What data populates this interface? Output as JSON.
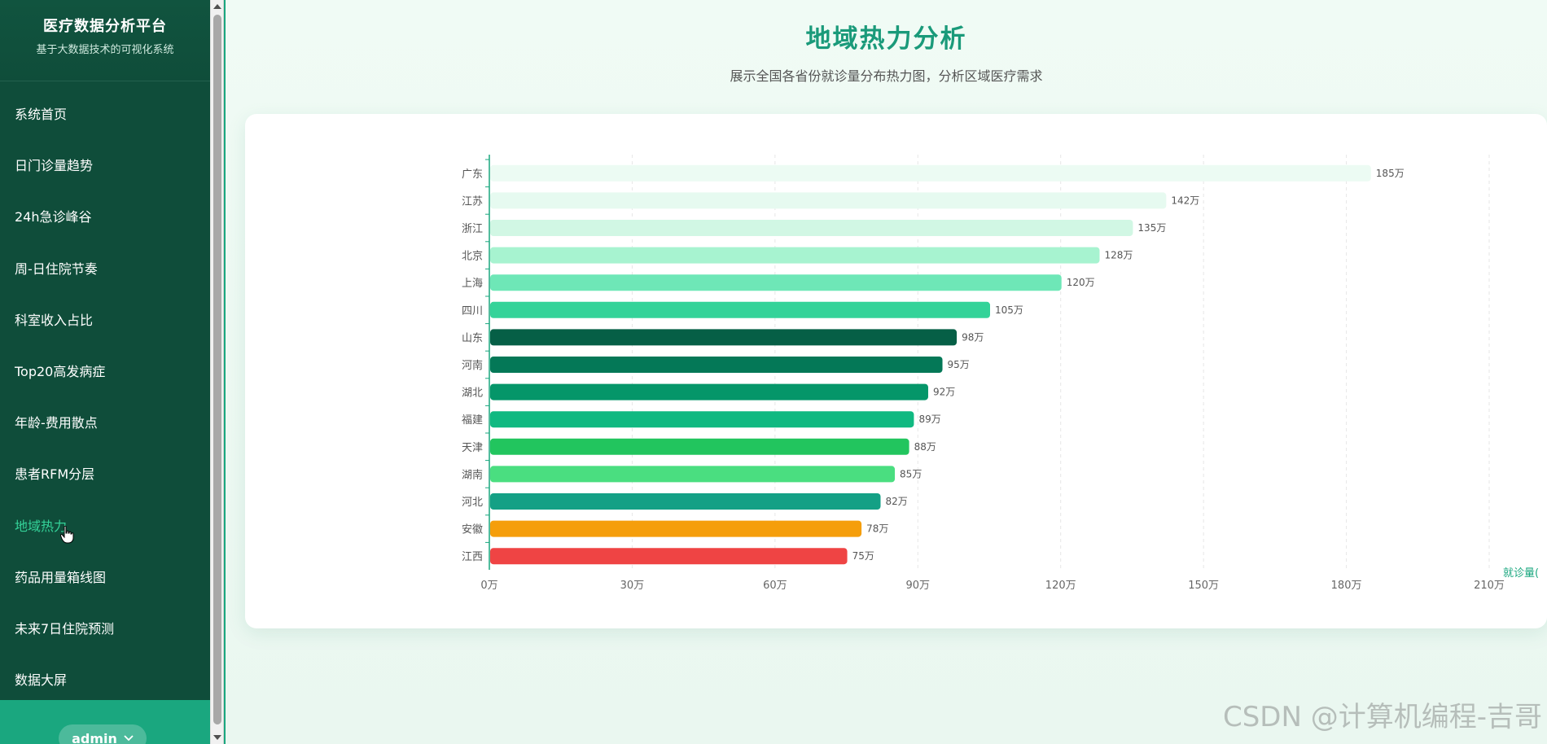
{
  "sidebar": {
    "title": "医疗数据分析平台",
    "subtitle": "基于大数据技术的可视化系统",
    "items": [
      {
        "label": "系统首页"
      },
      {
        "label": "日门诊量趋势"
      },
      {
        "label": "24h急诊峰谷"
      },
      {
        "label": "周-日住院节奏"
      },
      {
        "label": "科室收入占比"
      },
      {
        "label": "Top20高发病症"
      },
      {
        "label": "年龄-费用散点"
      },
      {
        "label": "患者RFM分层"
      },
      {
        "label": "地域热力"
      },
      {
        "label": "药品用量箱线图"
      },
      {
        "label": "未来7日住院预测"
      },
      {
        "label": "数据大屏"
      }
    ],
    "active_index": 8,
    "user": {
      "name": "admin",
      "icon": "chevron-down-icon"
    }
  },
  "page": {
    "title": "地域热力分析",
    "subtitle": "展示全国各省份就诊量分布热力图，分析区域医疗需求"
  },
  "watermark": "CSDN @计算机编程-吉哥",
  "colors": {
    "sidebar_bg": "#0f4d3a",
    "accent": "#1aa77f",
    "active_nav": "#34d399",
    "title": "#1a9a7a"
  },
  "chart_data": {
    "type": "bar",
    "orientation": "horizontal",
    "categories": [
      "广东",
      "江苏",
      "浙江",
      "北京",
      "上海",
      "四川",
      "山东",
      "河南",
      "湖北",
      "福建",
      "天津",
      "湖南",
      "河北",
      "安徽",
      "江西"
    ],
    "values": [
      185,
      142,
      135,
      128,
      120,
      105,
      98,
      95,
      92,
      89,
      88,
      85,
      82,
      78,
      75
    ],
    "value_labels": [
      "185万",
      "142万",
      "135万",
      "128万",
      "120万",
      "105万",
      "98万",
      "95万",
      "92万",
      "89万",
      "88万",
      "85万",
      "82万",
      "78万",
      "75万"
    ],
    "bar_colors": [
      "#ecfbf3",
      "#e6faf0",
      "#d1f7e4",
      "#a7f3d0",
      "#6ee7b7",
      "#34d399",
      "#065f46",
      "#047857",
      "#059669",
      "#10b981",
      "#22c55e",
      "#4ade80",
      "#14a085",
      "#f59e0b",
      "#ef4444"
    ],
    "x_ticks": [
      "0万",
      "30万",
      "60万",
      "90万",
      "120万",
      "150万",
      "180万",
      "210万"
    ],
    "xlim": [
      0,
      210
    ],
    "xlabel": "就诊量(",
    "grid": "vertical dashed"
  }
}
